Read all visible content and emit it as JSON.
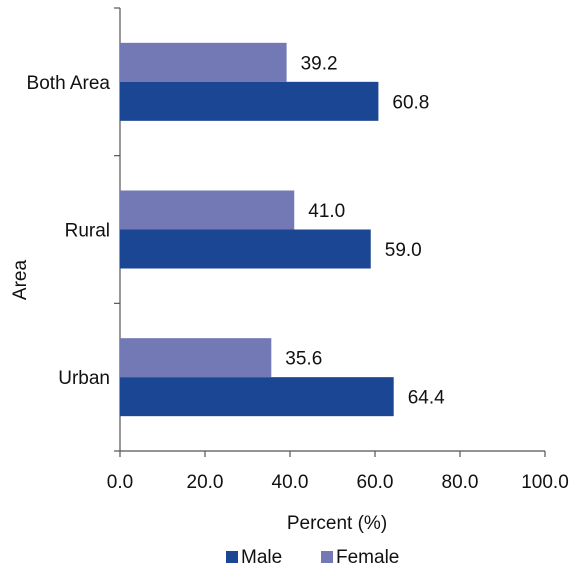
{
  "chart_data": {
    "type": "bar",
    "orientation": "horizontal",
    "categories": [
      "Both Area",
      "Rural",
      "Urban"
    ],
    "series": [
      {
        "name": "Female",
        "values": [
          39.2,
          41.0,
          35.6
        ],
        "color": "#7279b4",
        "labels": [
          "39.2",
          "41.0",
          "35.6"
        ]
      },
      {
        "name": "Male",
        "values": [
          60.8,
          59.0,
          64.4
        ],
        "color": "#1b4693",
        "labels": [
          "60.8",
          "59.0",
          "64.4"
        ]
      }
    ],
    "title": "",
    "xlabel": "Percent (%)",
    "ylabel": "Area",
    "xlim": [
      0,
      100
    ],
    "xticks": [
      "0.0",
      "20.0",
      "40.0",
      "60.0",
      "80.0",
      "100.0"
    ],
    "grid": false,
    "legend": {
      "position": "bottom",
      "entries": [
        {
          "label": "Male",
          "color": "#1b4693"
        },
        {
          "label": "Female",
          "color": "#7279b4"
        }
      ]
    }
  }
}
